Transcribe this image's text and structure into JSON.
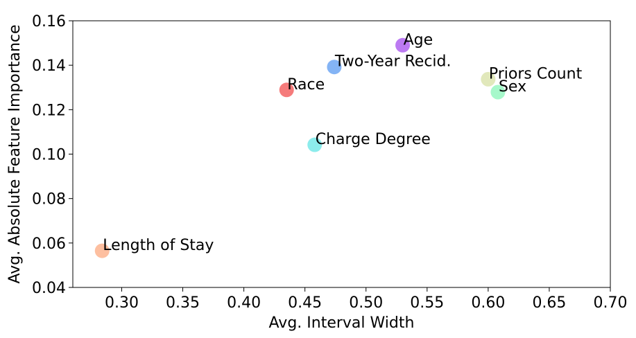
{
  "chart_data": {
    "type": "scatter",
    "title": "",
    "xlabel": "Avg. Interval Width",
    "ylabel": "Avg. Absolute Feature Importance",
    "xlim": [
      0.26,
      0.7
    ],
    "ylim": [
      0.04,
      0.16
    ],
    "x_ticks": [
      "0.30",
      "0.35",
      "0.40",
      "0.45",
      "0.50",
      "0.55",
      "0.60",
      "0.65",
      "0.70"
    ],
    "y_ticks": [
      "0.04",
      "0.06",
      "0.08",
      "0.10",
      "0.12",
      "0.14",
      "0.16"
    ],
    "grid": false,
    "points": [
      {
        "label": "Length of Stay",
        "x": 0.284,
        "y": 0.0565,
        "color": "#fca980"
      },
      {
        "label": "Race",
        "x": 0.435,
        "y": 0.1289,
        "color": "#f14f4f"
      },
      {
        "label": "Charge Degree",
        "x": 0.458,
        "y": 0.1042,
        "color": "#66e6e6"
      },
      {
        "label": "Two-Year Recid.",
        "x": 0.474,
        "y": 0.1392,
        "color": "#5b9bf2"
      },
      {
        "label": "Age",
        "x": 0.53,
        "y": 0.149,
        "color": "#a64dee"
      },
      {
        "label": "Priors Count",
        "x": 0.6,
        "y": 0.1337,
        "color": "#d7e0a4"
      },
      {
        "label": "Sex",
        "x": 0.608,
        "y": 0.1279,
        "color": "#88f5b8"
      }
    ]
  }
}
